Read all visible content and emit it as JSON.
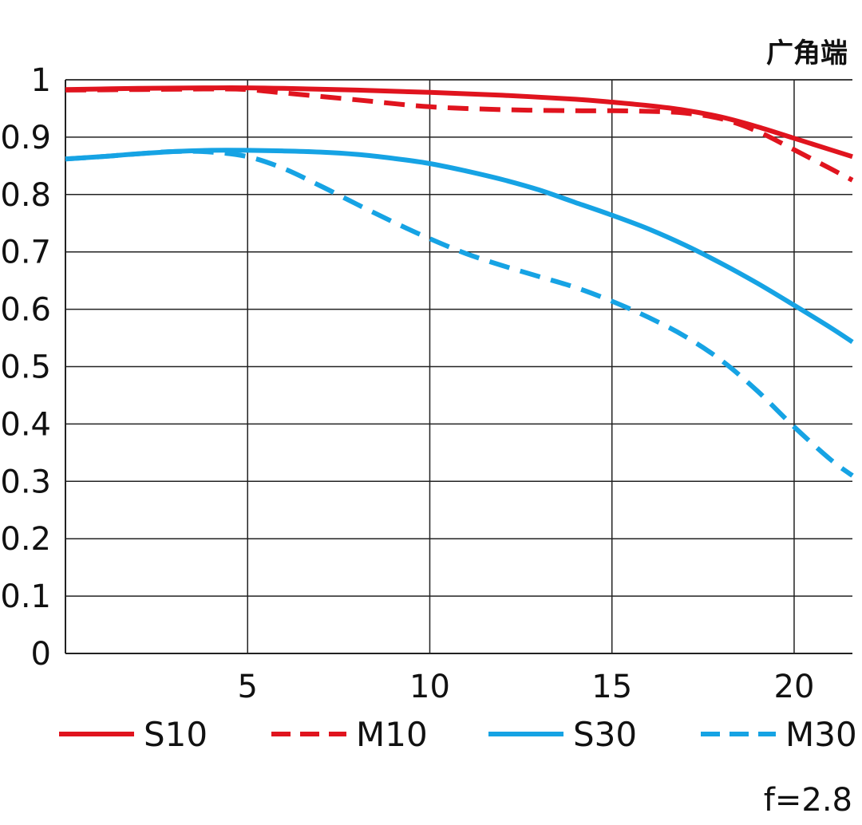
{
  "chart_data": {
    "type": "line",
    "title": "广角端",
    "annotation": "f=2.8",
    "xlabel": "",
    "ylabel": "",
    "xlim": [
      0,
      21.6
    ],
    "ylim": [
      0,
      1
    ],
    "x_ticks": [
      5,
      10,
      15,
      20
    ],
    "x_tick_labels": [
      "5",
      "10",
      "15",
      "20"
    ],
    "y_ticks": [
      0,
      0.1,
      0.2,
      0.3,
      0.4,
      0.5,
      0.6,
      0.7,
      0.8,
      0.9,
      1
    ],
    "y_tick_labels": [
      "0",
      "0.1",
      "0.2",
      "0.3",
      "0.4",
      "0.5",
      "0.6",
      "0.7",
      "0.8",
      "0.9",
      "1"
    ],
    "grid": true,
    "legend_position": "bottom",
    "series": [
      {
        "name": "S10",
        "color": "#e0141e",
        "style": "solid",
        "x": [
          0,
          2,
          4,
          5,
          6,
          8,
          10,
          12,
          14,
          15,
          16,
          17,
          18,
          19,
          20,
          21,
          21.6
        ],
        "y": [
          0.983,
          0.985,
          0.986,
          0.986,
          0.985,
          0.982,
          0.978,
          0.973,
          0.966,
          0.961,
          0.955,
          0.947,
          0.935,
          0.918,
          0.898,
          0.878,
          0.866
        ]
      },
      {
        "name": "M10",
        "color": "#e0141e",
        "style": "dashed",
        "x": [
          0,
          2,
          4,
          5,
          6,
          8,
          10,
          12,
          14,
          15,
          16,
          17,
          18,
          19,
          20,
          21,
          21.6
        ],
        "y": [
          0.982,
          0.983,
          0.984,
          0.983,
          0.977,
          0.965,
          0.953,
          0.948,
          0.946,
          0.946,
          0.945,
          0.942,
          0.932,
          0.91,
          0.878,
          0.845,
          0.825
        ]
      },
      {
        "name": "S30",
        "color": "#16a3e4",
        "style": "solid",
        "x": [
          0,
          1,
          2,
          3,
          4,
          5,
          6,
          7,
          8,
          9,
          10,
          11,
          12,
          13,
          14,
          15,
          16,
          17,
          18,
          19,
          20,
          21,
          21.6
        ],
        "y": [
          0.862,
          0.866,
          0.871,
          0.875,
          0.877,
          0.877,
          0.876,
          0.874,
          0.87,
          0.863,
          0.854,
          0.841,
          0.826,
          0.808,
          0.786,
          0.764,
          0.74,
          0.712,
          0.68,
          0.645,
          0.607,
          0.568,
          0.543
        ]
      },
      {
        "name": "M30",
        "color": "#16a3e4",
        "style": "dashed",
        "x": [
          0,
          1,
          2,
          3,
          4,
          5,
          6,
          7,
          8,
          9,
          10,
          11,
          12,
          13,
          14,
          15,
          16,
          17,
          18,
          19,
          20,
          21,
          21.6
        ],
        "y": [
          0.862,
          0.866,
          0.871,
          0.875,
          0.874,
          0.866,
          0.845,
          0.815,
          0.783,
          0.752,
          0.723,
          0.697,
          0.676,
          0.657,
          0.638,
          0.614,
          0.586,
          0.553,
          0.511,
          0.457,
          0.395,
          0.338,
          0.31
        ]
      }
    ]
  }
}
